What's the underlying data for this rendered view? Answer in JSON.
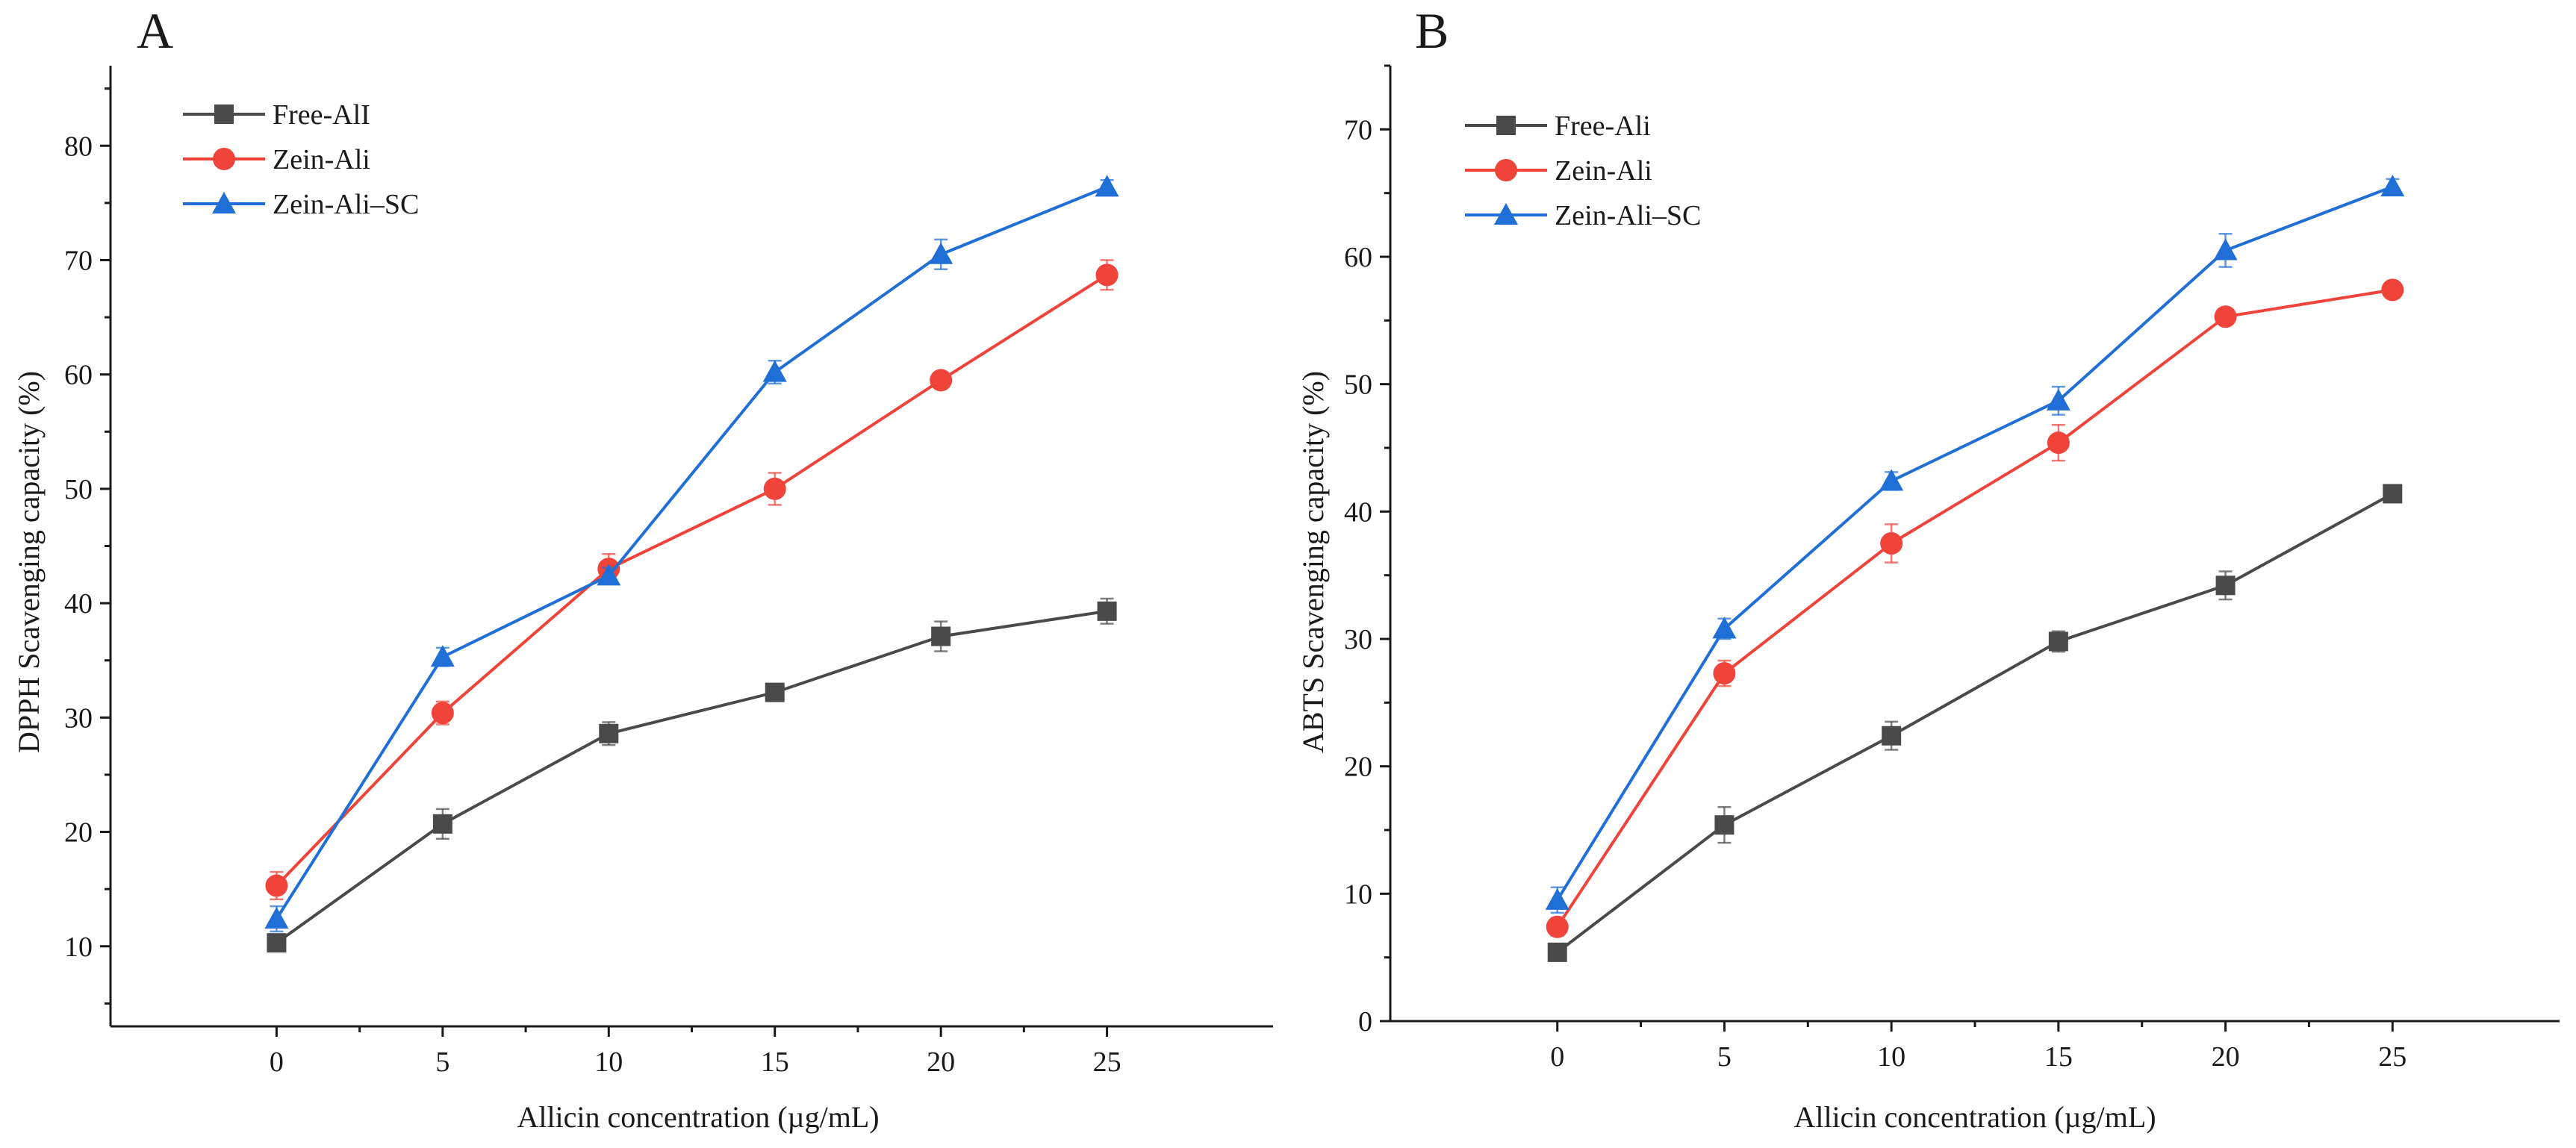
{
  "chart_data": [
    {
      "panel": "A",
      "type": "line",
      "xlabel": "Allicin concentration (µg/mL)",
      "ylabel": "DPPH Scavenging capacity (%)",
      "xlim": [
        -5,
        30
      ],
      "ylim": [
        3,
        87
      ],
      "x": [
        0,
        5,
        10,
        15,
        20,
        25
      ],
      "x_ticks": [
        0,
        5,
        10,
        15,
        20,
        25
      ],
      "y_ticks": [
        10,
        20,
        30,
        40,
        50,
        60,
        70,
        80
      ],
      "legend_position": "top-left",
      "series": [
        {
          "name": "Free-AlI",
          "color": "#4a4a4a",
          "marker": "square",
          "values": [
            10.3,
            20.7,
            28.6,
            32.2,
            37.1,
            39.3
          ],
          "errors": [
            0.6,
            1.3,
            1.0,
            0.6,
            1.3,
            1.1
          ]
        },
        {
          "name": "Zein-Ali",
          "color": "#f0433a",
          "marker": "circle",
          "values": [
            15.3,
            30.4,
            43.0,
            50.0,
            59.5,
            68.7
          ],
          "errors": [
            1.2,
            1.0,
            1.3,
            1.4,
            0.6,
            1.3
          ]
        },
        {
          "name": "Zein-Ali–SC",
          "color": "#1f6fd6",
          "marker": "triangle",
          "values": [
            12.4,
            35.3,
            42.4,
            60.2,
            70.5,
            76.4
          ],
          "errors": [
            1.1,
            0.8,
            0.7,
            1.0,
            1.3,
            0.6
          ]
        }
      ]
    },
    {
      "panel": "B",
      "type": "line",
      "xlabel": "Allicin concentration (µg/mL)",
      "ylabel": "ABTS Scavenging capacity (%)",
      "xlim": [
        -5,
        30
      ],
      "ylim": [
        0,
        75
      ],
      "x": [
        0,
        5,
        10,
        15,
        20,
        25
      ],
      "x_ticks": [
        0,
        5,
        10,
        15,
        20,
        25
      ],
      "y_ticks": [
        0,
        10,
        20,
        30,
        40,
        50,
        60,
        70
      ],
      "legend_position": "top-left",
      "series": [
        {
          "name": "Free-Ali",
          "color": "#4a4a4a",
          "marker": "square",
          "values": [
            5.4,
            15.4,
            22.4,
            29.8,
            34.2,
            41.4
          ],
          "errors": [
            0.6,
            1.4,
            1.1,
            0.8,
            1.1,
            0.6
          ]
        },
        {
          "name": "Zein-Ali",
          "color": "#f0433a",
          "marker": "circle",
          "values": [
            7.4,
            27.3,
            37.5,
            45.4,
            55.3,
            57.4
          ],
          "errors": [
            0.7,
            1.0,
            1.5,
            1.4,
            0.6,
            0.6
          ]
        },
        {
          "name": "Zein-Ali–SC",
          "color": "#1f6fd6",
          "marker": "triangle",
          "values": [
            9.5,
            30.8,
            42.4,
            48.7,
            60.5,
            65.5
          ],
          "errors": [
            1.0,
            0.8,
            0.7,
            1.1,
            1.3,
            0.6
          ]
        }
      ]
    }
  ]
}
